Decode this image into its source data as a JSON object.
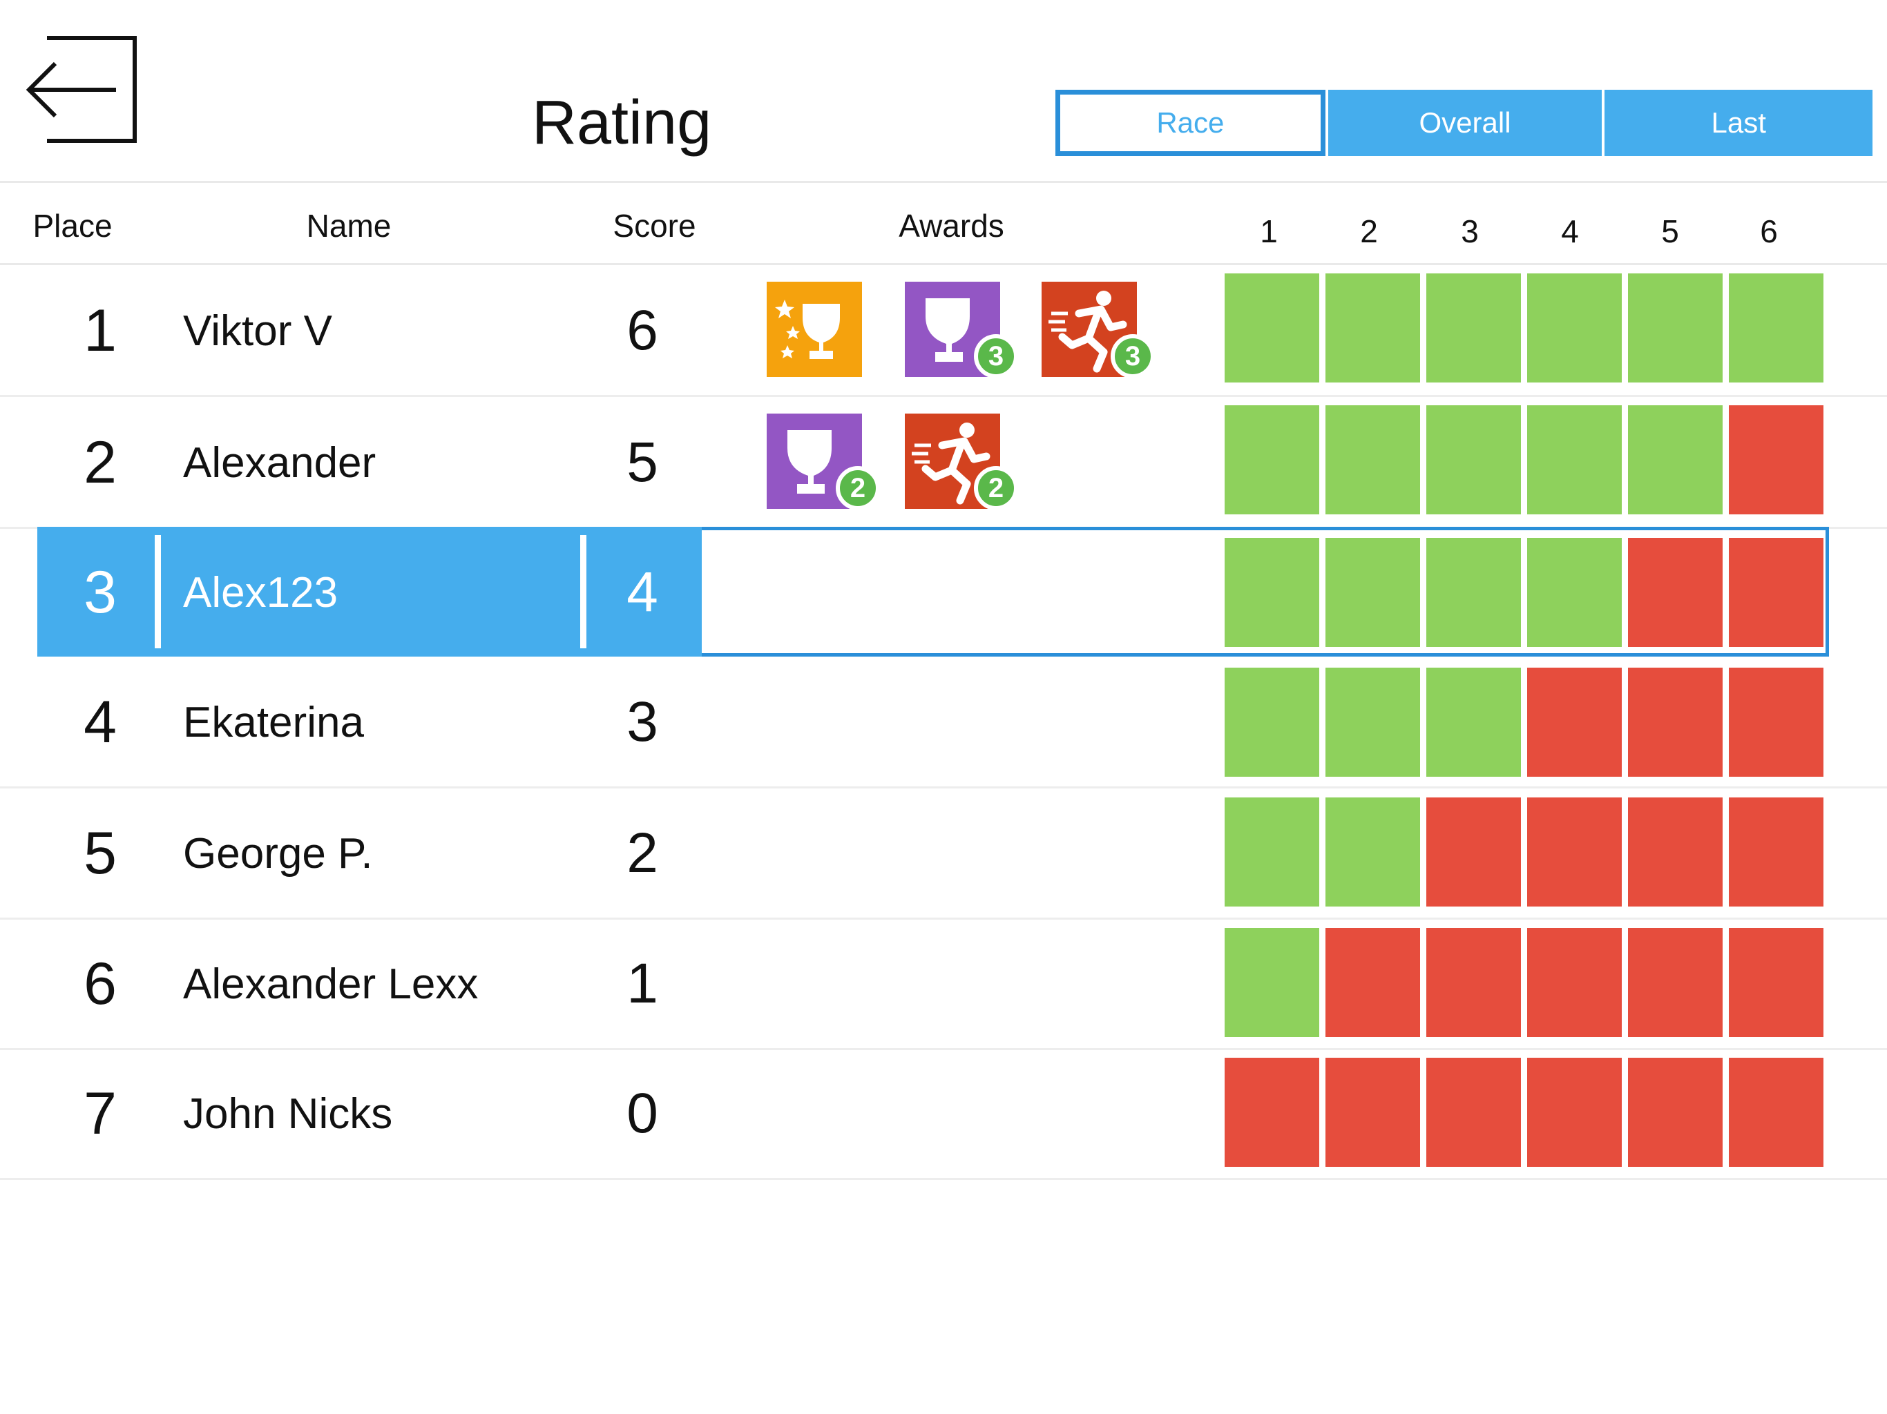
{
  "header": {
    "title": "Rating",
    "tabs": [
      {
        "label": "Race",
        "active": true
      },
      {
        "label": "Overall",
        "active": false
      },
      {
        "label": "Last",
        "active": false
      }
    ]
  },
  "columns": {
    "place": "Place",
    "name": "Name",
    "score": "Score",
    "awards": "Awards",
    "races": [
      "1",
      "2",
      "3",
      "4",
      "5",
      "6"
    ]
  },
  "colors": {
    "accent": "#45aded",
    "win": "#8ed15c",
    "lose": "#e64d3d",
    "award_gold": "#f5a20d",
    "award_purple": "#9356c4",
    "award_red": "#d3421f",
    "badge": "#5ab84a"
  },
  "rows": [
    {
      "place": "1",
      "name": "Viktor V",
      "score": "6",
      "awards": [
        {
          "icon": "stars-trophy-icon",
          "color": "gold",
          "count": ""
        },
        {
          "icon": "trophy-icon",
          "color": "purple",
          "count": "3"
        },
        {
          "icon": "runner-icon",
          "color": "red",
          "count": "3"
        }
      ],
      "results": [
        "win",
        "win",
        "win",
        "win",
        "win",
        "win"
      ]
    },
    {
      "place": "2",
      "name": "Alexander",
      "score": "5",
      "awards": [
        {
          "icon": "trophy-icon",
          "color": "purple",
          "count": "2"
        },
        {
          "icon": "runner-icon",
          "color": "red",
          "count": "2"
        }
      ],
      "results": [
        "win",
        "win",
        "win",
        "win",
        "win",
        "lose"
      ]
    },
    {
      "place": "3",
      "name": "Alex123",
      "score": "4",
      "selected": true,
      "awards": [],
      "results": [
        "win",
        "win",
        "win",
        "win",
        "lose",
        "lose"
      ]
    },
    {
      "place": "4",
      "name": "Ekaterina",
      "score": "3",
      "awards": [],
      "results": [
        "win",
        "win",
        "win",
        "lose",
        "lose",
        "lose"
      ]
    },
    {
      "place": "5",
      "name": "George P.",
      "score": "2",
      "awards": [],
      "results": [
        "win",
        "win",
        "lose",
        "lose",
        "lose",
        "lose"
      ]
    },
    {
      "place": "6",
      "name": "Alexander Lexx",
      "score": "1",
      "awards": [],
      "results": [
        "win",
        "lose",
        "lose",
        "lose",
        "lose",
        "lose"
      ]
    },
    {
      "place": "7",
      "name": "John Nicks",
      "score": "0",
      "awards": [],
      "results": [
        "lose",
        "lose",
        "lose",
        "lose",
        "lose",
        "lose"
      ]
    }
  ]
}
